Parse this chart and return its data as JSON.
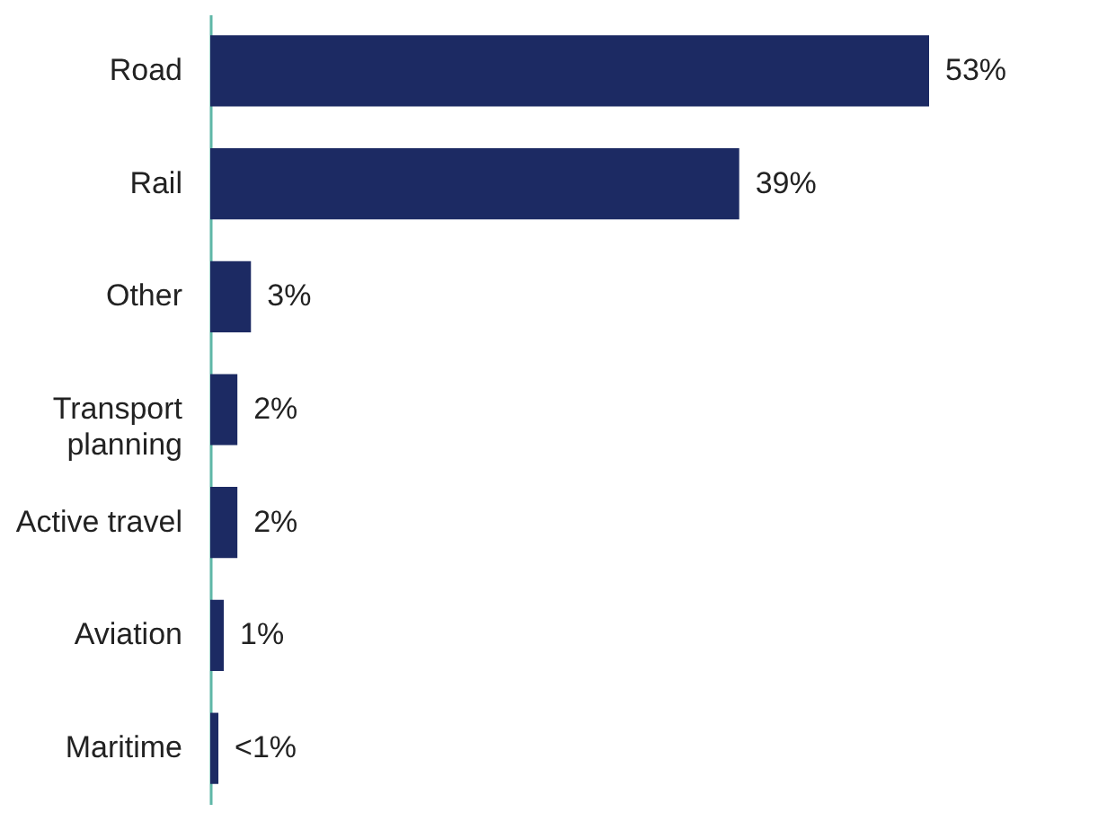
{
  "chart_data": {
    "type": "bar",
    "orientation": "horizontal",
    "categories": [
      "Road",
      "Rail",
      "Other",
      "Transport planning",
      "Active travel",
      "Aviation",
      "Maritime"
    ],
    "series": [
      {
        "color": "#1c2a63",
        "values": [
          53,
          39,
          3,
          2,
          2,
          1,
          0.6
        ],
        "value_labels": [
          "53%",
          "39%",
          "3%",
          "2%",
          "2%",
          "1%",
          "<1%"
        ]
      }
    ],
    "grid": false
  }
}
